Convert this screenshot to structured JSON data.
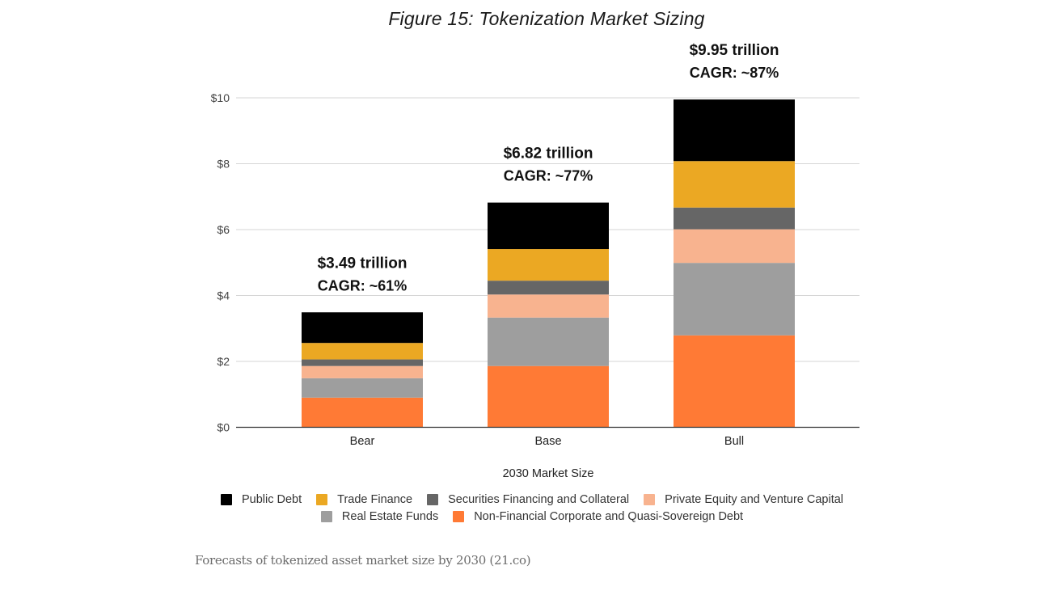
{
  "figure": {
    "title": "Figure 15: Tokenization Market Sizing",
    "caption": "Forecasts of tokenized asset market size by 2030 (21.co)"
  },
  "chart_data": {
    "type": "bar",
    "stacked": true,
    "title": "Figure 15: Tokenization Market Sizing",
    "xlabel": "2030 Market Size",
    "ylabel": "",
    "units": "USD trillions",
    "ylim": [
      0,
      10
    ],
    "yticks": [
      0,
      2,
      4,
      6,
      8,
      10
    ],
    "ytick_labels": [
      "$0",
      "$2",
      "$4",
      "$6",
      "$8",
      "$10"
    ],
    "grid": true,
    "legend_position": "bottom",
    "categories": [
      "Bear",
      "Base",
      "Bull"
    ],
    "series": [
      {
        "name": "Non-Financial Corporate and Quasi-Sovereign Debt",
        "color": "#ff7a35",
        "values": [
          0.9,
          1.86,
          2.79
        ]
      },
      {
        "name": "Real Estate Funds",
        "color": "#9e9e9e",
        "values": [
          0.59,
          1.47,
          2.2
        ]
      },
      {
        "name": "Private Equity and Venture Capital",
        "color": "#f8b38f",
        "values": [
          0.37,
          0.7,
          1.02
        ]
      },
      {
        "name": "Securities Financing and Collateral",
        "color": "#666666",
        "values": [
          0.2,
          0.42,
          0.66
        ]
      },
      {
        "name": "Trade Finance",
        "color": "#eba823",
        "values": [
          0.5,
          0.96,
          1.41
        ]
      },
      {
        "name": "Public Debt",
        "color": "#000000",
        "values": [
          0.93,
          1.41,
          1.87
        ]
      }
    ],
    "totals": [
      3.49,
      6.82,
      9.95
    ],
    "annotations": [
      {
        "category": "Bear",
        "line1": "$3.49 trillion",
        "line2": "CAGR: ~61%"
      },
      {
        "category": "Base",
        "line1": "$6.82  trillion",
        "line2": "CAGR: ~77%"
      },
      {
        "category": "Bull",
        "line1": "$9.95  trillion",
        "line2": "CAGR: ~87%"
      }
    ],
    "legend_order": [
      [
        "Public Debt",
        "Trade Finance",
        "Securities Financing and Collateral",
        "Private Equity and Venture Capital"
      ],
      [
        "Real Estate Funds",
        "Non-Financial Corporate and Quasi-Sovereign Debt"
      ]
    ]
  }
}
